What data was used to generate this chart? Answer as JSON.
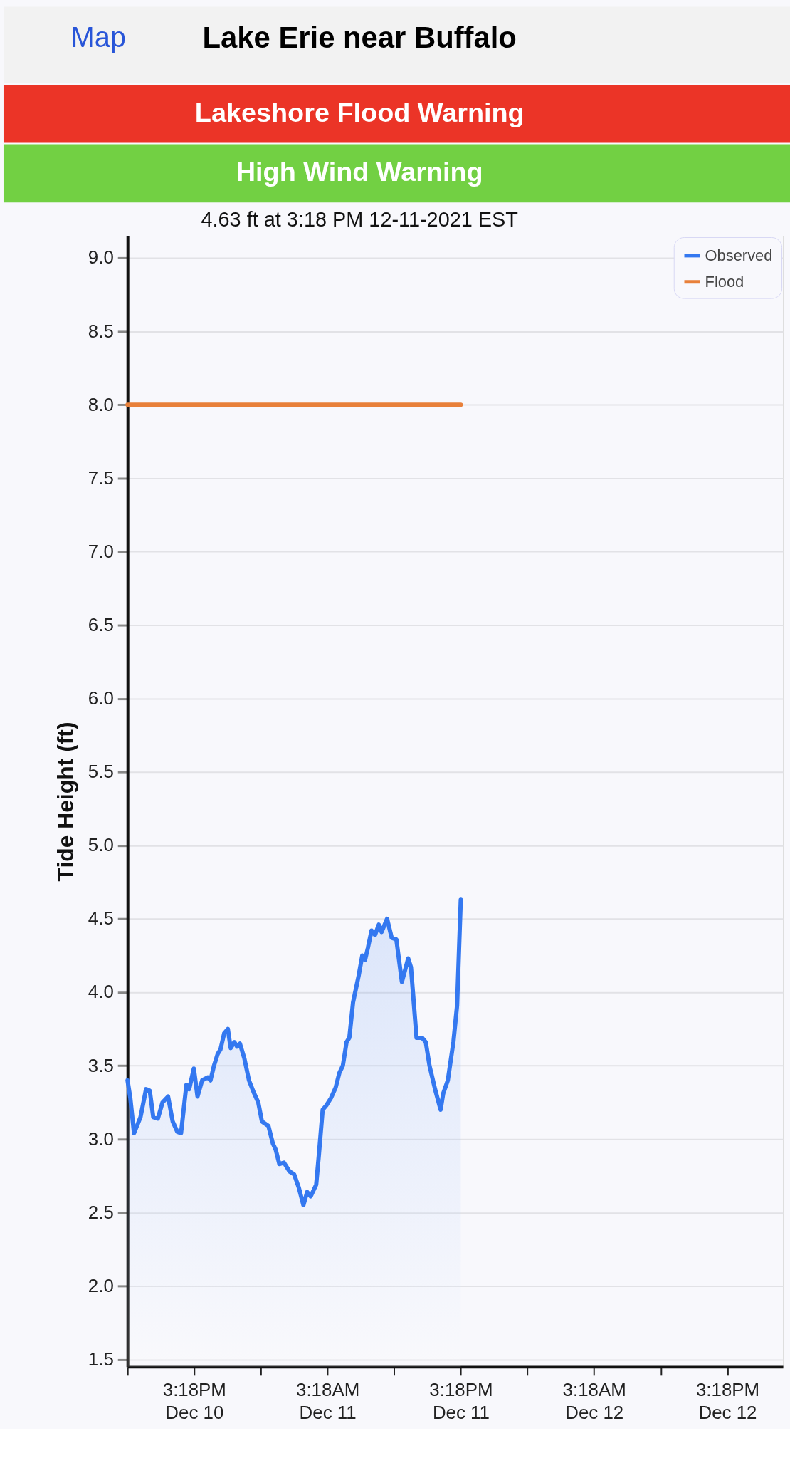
{
  "chart_data": {
    "type": "line",
    "title": "Lake Erie near Buffalo",
    "subtitle": "4.63 ft at 3:18 PM 12-11-2021 EST",
    "ylabel": "Tide Height (ft)",
    "annotations": [
      "Map",
      "Lakeshore Flood Warning",
      "High Wind Warning"
    ],
    "xlim": [
      "2021-12-10T09:18",
      "2021-12-12T20:18"
    ],
    "xticks": [
      {
        "value": "2021-12-10T09:18",
        "label": null
      },
      {
        "value": "2021-12-10T15:18",
        "label": "3:18PM Dec 10"
      },
      {
        "value": "2021-12-10T21:18",
        "label": null
      },
      {
        "value": "2021-12-11T03:18",
        "label": "3:18AM Dec 11"
      },
      {
        "value": "2021-12-11T09:18",
        "label": null
      },
      {
        "value": "2021-12-11T15:18",
        "label": "3:18PM Dec 11"
      },
      {
        "value": "2021-12-11T21:18",
        "label": null
      },
      {
        "value": "2021-12-12T03:18",
        "label": "3:18AM Dec 12"
      },
      {
        "value": "2021-12-12T09:18",
        "label": null
      },
      {
        "value": "2021-12-12T15:18",
        "label": "3:18PM Dec 12"
      }
    ],
    "ylim": [
      1.45,
      9.15
    ],
    "yticks": [
      1.5,
      {
        "value": 2,
        "label": "2.0"
      },
      2.5,
      {
        "value": 3,
        "label": "3.0"
      },
      3.5,
      {
        "value": 4,
        "label": "4.0"
      },
      4.5,
      {
        "value": 5,
        "label": "5.0"
      },
      5.5,
      {
        "value": 6,
        "label": "6.0"
      },
      6.5,
      {
        "value": 7,
        "label": "7.0"
      },
      7.5,
      {
        "value": 8,
        "label": "8.0"
      },
      8.5,
      {
        "value": 9,
        "label": "9.0"
      }
    ],
    "grid": "y",
    "legend": "top right",
    "marker": "none",
    "line_style": "solid",
    "series": [
      {
        "name": "Observed",
        "type": "area",
        "color": "#3478f0",
        "x": [
          "2021-12-10T09:18",
          "2021-12-10T09:33",
          "2021-12-10T09:53",
          "2021-12-10T10:28",
          "2021-12-10T10:58",
          "2021-12-10T11:18",
          "2021-12-10T11:37",
          "2021-12-10T12:02",
          "2021-12-10T12:27",
          "2021-12-10T12:57",
          "2021-12-10T13:22",
          "2021-12-10T13:47",
          "2021-12-10T14:07",
          "2021-12-10T14:36",
          "2021-12-10T14:51",
          "2021-12-10T15:16",
          "2021-12-10T15:36",
          "2021-12-10T16:01",
          "2021-12-10T16:31",
          "2021-12-10T16:46",
          "2021-12-10T17:05",
          "2021-12-10T17:25",
          "2021-12-10T17:40",
          "2021-12-10T18:00",
          "2021-12-10T18:20",
          "2021-12-10T18:35",
          "2021-12-10T18:55",
          "2021-12-10T19:10",
          "2021-12-10T19:25",
          "2021-12-10T19:49",
          "2021-12-10T20:14",
          "2021-12-10T20:39",
          "2021-12-10T21:04",
          "2021-12-10T21:24",
          "2021-12-10T21:59",
          "2021-12-10T22:23",
          "2021-12-10T22:38",
          "2021-12-10T22:58",
          "2021-12-10T23:23",
          "2021-12-10T23:53",
          "2021-12-11T00:18",
          "2021-12-11T00:43",
          "2021-12-11T01:08",
          "2021-12-11T01:28",
          "2021-12-11T01:47",
          "2021-12-11T02:17",
          "2021-12-11T02:32",
          "2021-12-11T02:52",
          "2021-12-11T03:12",
          "2021-12-11T03:37",
          "2021-12-11T04:02",
          "2021-12-11T04:22",
          "2021-12-11T04:41",
          "2021-12-11T05:01",
          "2021-12-11T05:16",
          "2021-12-11T05:36",
          "2021-12-11T06:06",
          "2021-12-11T06:26",
          "2021-12-11T06:41",
          "2021-12-11T06:56",
          "2021-12-11T07:16",
          "2021-12-11T07:35",
          "2021-12-11T07:55",
          "2021-12-11T08:10",
          "2021-12-11T08:40",
          "2021-12-11T09:05",
          "2021-12-11T09:30",
          "2021-12-11T10:00",
          "2021-12-11T10:34",
          "2021-12-11T10:49",
          "2021-12-11T11:19",
          "2021-12-11T11:49",
          "2021-12-11T12:09",
          "2021-12-11T12:29",
          "2021-12-11T12:59",
          "2021-12-11T13:29",
          "2021-12-11T13:43",
          "2021-12-11T14:08",
          "2021-12-11T14:38",
          "2021-12-11T14:58",
          "2021-12-11T15:18"
        ],
        "values": [
          3.4,
          3.28,
          3.04,
          3.15,
          3.34,
          3.33,
          3.15,
          3.14,
          3.25,
          3.29,
          3.12,
          3.05,
          3.04,
          3.37,
          3.34,
          3.48,
          3.29,
          3.4,
          3.42,
          3.4,
          3.5,
          3.58,
          3.61,
          3.72,
          3.75,
          3.62,
          3.66,
          3.63,
          3.65,
          3.55,
          3.4,
          3.32,
          3.25,
          3.12,
          3.09,
          2.97,
          2.93,
          2.83,
          2.84,
          2.78,
          2.76,
          2.67,
          2.55,
          2.64,
          2.61,
          2.69,
          2.9,
          3.2,
          3.23,
          3.28,
          3.35,
          3.45,
          3.5,
          3.66,
          3.69,
          3.93,
          4.11,
          4.25,
          4.22,
          4.3,
          4.42,
          4.39,
          4.46,
          4.41,
          4.5,
          4.37,
          4.36,
          4.07,
          4.23,
          4.17,
          3.69,
          3.69,
          3.66,
          3.5,
          3.34,
          3.2,
          3.31,
          3.4,
          3.66,
          3.91,
          4.63
        ]
      },
      {
        "name": "Flood",
        "type": "line",
        "color": "#e8803a",
        "x": [
          "2021-12-10T09:18",
          "2021-12-11T15:18"
        ],
        "values": [
          8.0,
          8.0
        ]
      }
    ]
  }
}
